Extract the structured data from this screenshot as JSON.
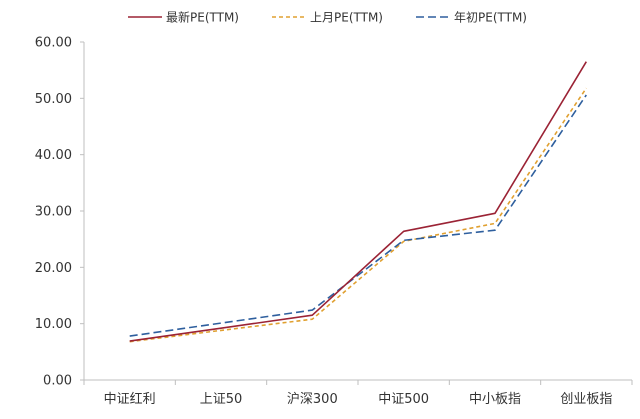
{
  "chart_data": {
    "type": "line",
    "categories": [
      "中证红利",
      "上证50",
      "沪深300",
      "中证500",
      "中小板指",
      "创业板指"
    ],
    "ylim": [
      0,
      60
    ],
    "yticks": [
      "0.00",
      "10.00",
      "20.00",
      "30.00",
      "40.00",
      "50.00",
      "60.00"
    ],
    "grid": false,
    "legend_position": "top",
    "series": [
      {
        "name": "最新PE(TTM)",
        "color": "#9b2335",
        "dash": "solid",
        "values": [
          6.9,
          9.2,
          11.5,
          26.4,
          29.6,
          56.5
        ]
      },
      {
        "name": "上月PE(TTM)",
        "color": "#e0a030",
        "dash": "dashed",
        "values": [
          6.8,
          8.8,
          10.8,
          24.6,
          27.8,
          51.8
        ]
      },
      {
        "name": "年初PE(TTM)",
        "color": "#2e5f9e",
        "dash": "dashed",
        "values": [
          7.8,
          10.1,
          12.4,
          24.8,
          26.6,
          50.6
        ]
      }
    ]
  }
}
